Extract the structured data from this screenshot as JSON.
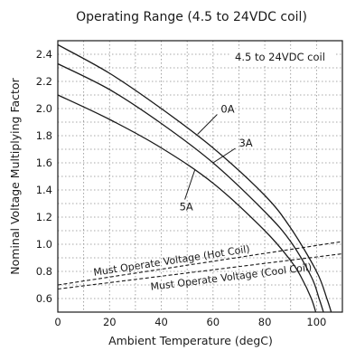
{
  "chart_data": {
    "type": "line",
    "title": "Operating Range (4.5 to 24VDC coil)",
    "xlabel": "Ambient Temperature (degC)",
    "ylabel": "Nominal Voltage Multiplying Factor",
    "xlim": [
      0,
      110
    ],
    "ylim": [
      0.5,
      2.5
    ],
    "xticks": [
      0,
      20,
      40,
      60,
      80,
      100
    ],
    "yticks": [
      0.6,
      0.8,
      1.0,
      1.2,
      1.4,
      1.6,
      1.8,
      2.0,
      2.2,
      2.4
    ],
    "x_tick_labels": [
      "0",
      "20",
      "40",
      "60",
      "80",
      "100"
    ],
    "y_tick_labels": [
      "0.6",
      "0.8",
      "1.0",
      "1.2",
      "1.4",
      "1.6",
      "1.8",
      "2.0",
      "2.2",
      "2.4"
    ],
    "grid": "dotted",
    "legend_box": "4.5 to 24VDC coil",
    "series": [
      {
        "name": "0A",
        "style": "solid",
        "points": [
          [
            0,
            2.47
          ],
          [
            20,
            2.26
          ],
          [
            40,
            2.0
          ],
          [
            60,
            1.71
          ],
          [
            80,
            1.36
          ],
          [
            90,
            1.12
          ],
          [
            100,
            0.8
          ],
          [
            104,
            0.6
          ],
          [
            106,
            0.48
          ]
        ]
      },
      {
        "name": "3A",
        "style": "solid",
        "points": [
          [
            0,
            2.33
          ],
          [
            20,
            2.14
          ],
          [
            40,
            1.89
          ],
          [
            60,
            1.6
          ],
          [
            80,
            1.24
          ],
          [
            90,
            1.02
          ],
          [
            98,
            0.76
          ],
          [
            101,
            0.6
          ],
          [
            103,
            0.48
          ]
        ]
      },
      {
        "name": "5A",
        "style": "solid",
        "points": [
          [
            0,
            2.1
          ],
          [
            20,
            1.92
          ],
          [
            40,
            1.71
          ],
          [
            60,
            1.45
          ],
          [
            80,
            1.1
          ],
          [
            90,
            0.88
          ],
          [
            94,
            0.76
          ],
          [
            98,
            0.6
          ],
          [
            100,
            0.48
          ]
        ]
      },
      {
        "name": "Must Operate Voltage (Hot Coil)",
        "style": "dashed",
        "points": [
          [
            0,
            0.7
          ],
          [
            110,
            1.02
          ]
        ]
      },
      {
        "name": "Must Operate Voltage (Cool Coil)",
        "style": "dashed",
        "points": [
          [
            0,
            0.67
          ],
          [
            110,
            0.93
          ]
        ]
      }
    ],
    "annotations": [
      {
        "text": "0A",
        "x": 63,
        "y": 1.97,
        "pointer_to": [
          54,
          1.81
        ]
      },
      {
        "text": "3A",
        "x": 70,
        "y": 1.72,
        "pointer_to": [
          60,
          1.6
        ]
      },
      {
        "text": "5A",
        "x": 47,
        "y": 1.25,
        "pointer_to": [
          53,
          1.55
        ]
      }
    ],
    "colors": {
      "line": "#1a1a1a",
      "grid": "#8c8c8c",
      "background": "#ffffff"
    }
  }
}
